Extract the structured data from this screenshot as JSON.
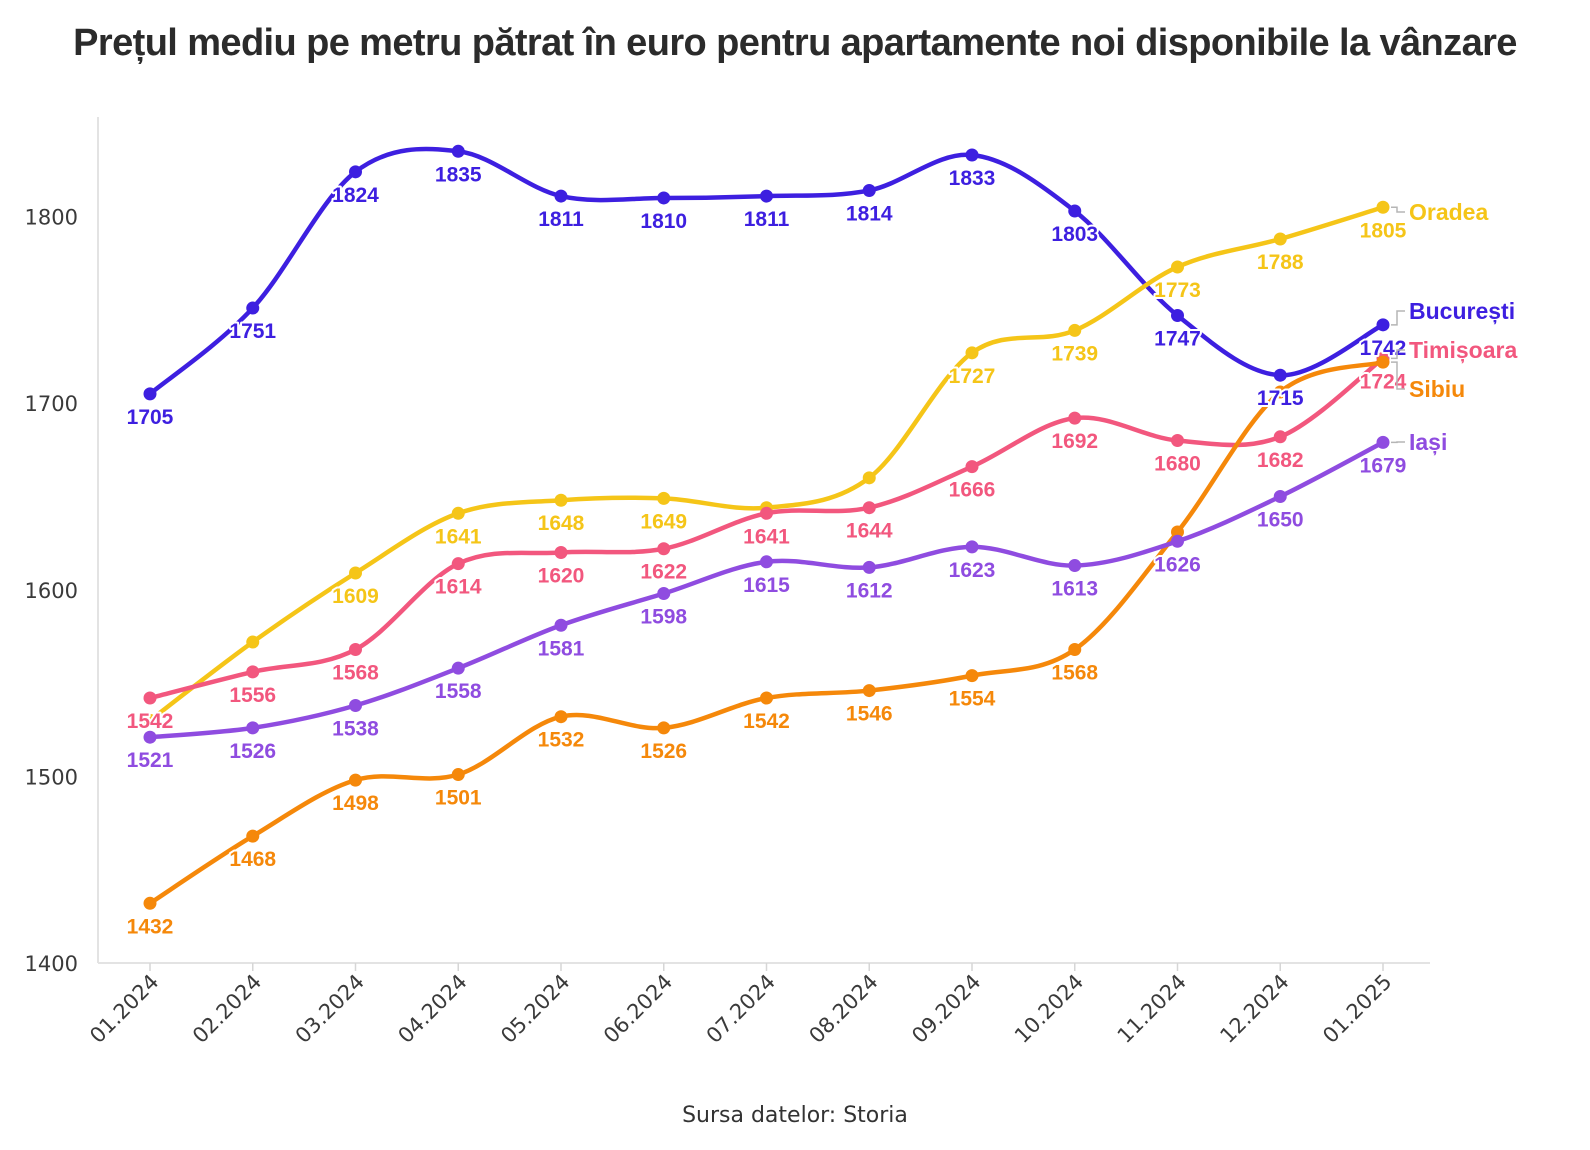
{
  "chart_data": {
    "type": "line",
    "title": "Prețul mediu pe metru pătrat în euro pentru apartamente noi disponibile la vânzare",
    "source": "Sursa datelor: Storia",
    "xlabel": "",
    "ylabel": "",
    "x": [
      "01.2024",
      "02.2024",
      "03.2024",
      "04.2024",
      "05.2024",
      "06.2024",
      "07.2024",
      "08.2024",
      "09.2024",
      "10.2024",
      "11.2024",
      "12.2024",
      "01.2025"
    ],
    "ylim": [
      1400,
      1860
    ],
    "yticks": [
      1400,
      1500,
      1600,
      1700,
      1800
    ],
    "grid": false,
    "legend": "direct labels at line ends (right)",
    "series": [
      {
        "name": "București",
        "color": "#3d1fe0",
        "values": [
          1705,
          1751,
          1824,
          1835,
          1811,
          1810,
          1811,
          1814,
          1833,
          1803,
          1747,
          1715,
          1742
        ]
      },
      {
        "name": "Oradea",
        "color": "#f5c518",
        "values": [
          1530,
          1572,
          1609,
          1641,
          1648,
          1649,
          1644,
          1660,
          1727,
          1739,
          1773,
          1788,
          1805
        ]
      },
      {
        "name": "Timișoara",
        "color": "#f2577e",
        "values": [
          1542,
          1556,
          1568,
          1614,
          1620,
          1622,
          1641,
          1644,
          1666,
          1692,
          1680,
          1682,
          1724
        ]
      },
      {
        "name": "Sibiu",
        "color": "#f5880a",
        "values": [
          1432,
          1468,
          1498,
          1501,
          1532,
          1526,
          1542,
          1546,
          1554,
          1568,
          1631,
          1706,
          1722
        ]
      },
      {
        "name": "Iași",
        "color": "#8f4ce0",
        "values": [
          1521,
          1526,
          1538,
          1558,
          1581,
          1598,
          1615,
          1612,
          1623,
          1613,
          1626,
          1650,
          1679
        ]
      }
    ],
    "data_labels": {
      "București": [
        "1705",
        "1751",
        "1824",
        "1835",
        "1811",
        "1810",
        "1811",
        "1814",
        "1833",
        "1803",
        "1747",
        "1715",
        "1742"
      ],
      "Oradea": [
        "",
        "",
        "1609",
        "1641",
        "1648",
        "1649",
        "",
        "",
        "1727",
        "1739",
        "1773",
        "1788",
        "1805"
      ],
      "Timișoara": [
        "1542",
        "1556",
        "1568",
        "1614",
        "1620",
        "1622",
        "1641",
        "1644",
        "1666",
        "1692",
        "1680",
        "1682",
        "1724"
      ],
      "Sibiu": [
        "1432",
        "1468",
        "1498",
        "1501",
        "1532",
        "1526",
        "1542",
        "1546",
        "1554",
        "1568",
        "",
        "",
        ""
      ],
      "Iași": [
        "1521",
        "1526",
        "1538",
        "1558",
        "1581",
        "1598",
        "1615",
        "1612",
        "1623",
        "1613",
        "1626",
        "1650",
        "1679"
      ]
    }
  }
}
